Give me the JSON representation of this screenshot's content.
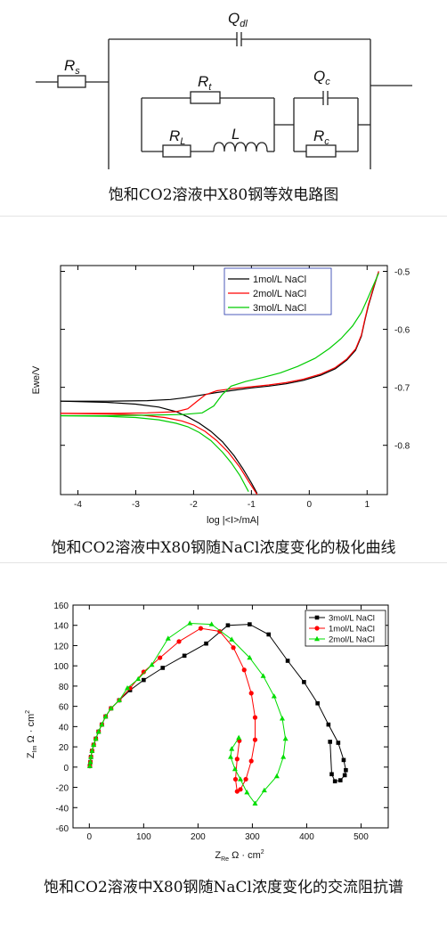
{
  "circuit": {
    "labels": {
      "Rs": {
        "main": "R",
        "sub": "s"
      },
      "Qdl": {
        "main": "Q",
        "sub": "dl"
      },
      "Rt": {
        "main": "R",
        "sub": "t"
      },
      "RL": {
        "main": "R",
        "sub": "L"
      },
      "L": {
        "main": "L",
        "sub": ""
      },
      "Qc": {
        "main": "Q",
        "sub": "c"
      },
      "Rc": {
        "main": "R",
        "sub": "c"
      }
    },
    "caption": "饱和CO2溶液中X80钢等效电路图"
  },
  "polarization": {
    "caption": "饱和CO2溶液中X80钢随NaCl浓度变化的极化曲线",
    "chart_data": {
      "type": "line",
      "xlabel": "log |<I>/mA|",
      "ylabel": "Ewe/V",
      "xlim": [
        -4.3,
        1.35
      ],
      "ylim": [
        -0.885,
        -0.49
      ],
      "xticks": [
        -4,
        -3,
        -2,
        -1,
        0,
        1
      ],
      "yticks": [
        -0.5,
        -0.6,
        -0.7,
        -0.8
      ],
      "xticklabels": [
        "-4",
        "-3",
        "-2",
        "-1",
        "0",
        "1"
      ],
      "yticklabels": [
        "-0.5",
        "-0.6",
        "-0.7",
        "-0.8"
      ],
      "legend_position": "top-right",
      "series": [
        {
          "name": "1mol/L NaCl",
          "color": "#000000",
          "x": [
            -4.3,
            -3.5,
            -2.8,
            -2.4,
            -2.15,
            -1.9,
            -1.6,
            -1.3,
            -1.0,
            -0.7,
            -0.4,
            -0.1,
            0.2,
            0.45,
            0.65,
            0.8,
            0.9,
            0.96,
            1.02,
            1.1,
            1.2
          ],
          "y": [
            -0.724,
            -0.724,
            -0.723,
            -0.721,
            -0.718,
            -0.714,
            -0.709,
            -0.705,
            -0.701,
            -0.698,
            -0.694,
            -0.688,
            -0.679,
            -0.668,
            -0.653,
            -0.636,
            -0.612,
            -0.585,
            -0.56,
            -0.533,
            -0.5
          ],
          "x2": [
            -4.3,
            -3.5,
            -3.0,
            -2.6,
            -2.3,
            -2.1,
            -1.9,
            -1.7,
            -1.5,
            -1.3,
            -1.15,
            -1.0,
            -0.9
          ],
          "y2": [
            -0.724,
            -0.726,
            -0.729,
            -0.734,
            -0.742,
            -0.751,
            -0.762,
            -0.776,
            -0.794,
            -0.818,
            -0.84,
            -0.865,
            -0.883
          ]
        },
        {
          "name": "2mol/L NaCl",
          "color": "#ff0000",
          "x": [
            -4.3,
            -3.5,
            -2.8,
            -2.3,
            -2.1,
            -1.95,
            -1.8,
            -1.6,
            -1.3,
            -1.0,
            -0.7,
            -0.4,
            -0.1,
            0.2,
            0.45,
            0.65,
            0.8,
            0.9,
            0.96,
            1.02,
            1.1,
            1.2
          ],
          "y": [
            -0.745,
            -0.745,
            -0.744,
            -0.742,
            -0.737,
            -0.725,
            -0.713,
            -0.706,
            -0.702,
            -0.699,
            -0.696,
            -0.692,
            -0.686,
            -0.677,
            -0.666,
            -0.651,
            -0.634,
            -0.61,
            -0.583,
            -0.558,
            -0.531,
            -0.5
          ],
          "x2": [
            -4.3,
            -3.4,
            -2.9,
            -2.5,
            -2.2,
            -2.0,
            -1.8,
            -1.6,
            -1.4,
            -1.2,
            -1.05,
            -0.9
          ],
          "y2": [
            -0.745,
            -0.746,
            -0.748,
            -0.752,
            -0.758,
            -0.765,
            -0.776,
            -0.792,
            -0.812,
            -0.838,
            -0.862,
            -0.885
          ]
        },
        {
          "name": "3mol/L NaCl",
          "color": "#00cc00",
          "x": [
            -4.3,
            -3.5,
            -2.8,
            -2.2,
            -1.85,
            -1.65,
            -1.5,
            -1.35,
            -1.1,
            -0.8,
            -0.5,
            -0.2,
            0.1,
            0.35,
            0.55,
            0.75,
            0.9,
            1.0,
            1.1,
            1.2
          ],
          "y": [
            -0.749,
            -0.749,
            -0.748,
            -0.747,
            -0.744,
            -0.732,
            -0.712,
            -0.698,
            -0.69,
            -0.683,
            -0.675,
            -0.664,
            -0.65,
            -0.633,
            -0.616,
            -0.594,
            -0.571,
            -0.549,
            -0.526,
            -0.503
          ],
          "x2": [
            -4.3,
            -3.5,
            -3.0,
            -2.6,
            -2.3,
            -2.1,
            -1.9,
            -1.7,
            -1.5,
            -1.35,
            -1.2,
            -1.05
          ],
          "y2": [
            -0.749,
            -0.75,
            -0.752,
            -0.756,
            -0.762,
            -0.768,
            -0.778,
            -0.792,
            -0.812,
            -0.83,
            -0.852,
            -0.88
          ]
        }
      ]
    }
  },
  "impedance": {
    "caption": "饱和CO2溶液中X80钢随NaCl浓度变化的交流阻抗谱",
    "chart_data": {
      "type": "scatter",
      "xlabel": {
        "main": "Z",
        "sub": "Re",
        "unit": "Ω · cm",
        "sup": "2"
      },
      "ylabel": {
        "main": "Z",
        "sub": "Im",
        "unit": "Ω · cm",
        "sup": "2"
      },
      "xlim": [
        -30,
        550
      ],
      "ylim": [
        -60,
        160
      ],
      "xticks": [
        0,
        100,
        200,
        300,
        400,
        500
      ],
      "yticks": [
        -60,
        -40,
        -20,
        0,
        20,
        40,
        60,
        80,
        100,
        120,
        140,
        160
      ],
      "xticklabels": [
        "0",
        "100",
        "200",
        "300",
        "400",
        "500"
      ],
      "yticklabels": [
        "-60",
        "-40",
        "-20",
        "0",
        "20",
        "40",
        "60",
        "80",
        "100",
        "120",
        "140",
        "160"
      ],
      "legend_position": "top-right",
      "series": [
        {
          "name": "3mol/L NaCl",
          "color": "#000000",
          "marker": "square",
          "x": [
            1,
            2,
            3,
            5,
            8,
            12,
            17,
            23,
            30,
            40,
            55,
            75,
            100,
            135,
            175,
            215,
            255,
            295,
            330,
            365,
            395,
            420,
            440,
            458,
            468,
            472,
            470,
            462,
            452,
            446,
            443
          ],
          "y": [
            1,
            5,
            10,
            16,
            22,
            28,
            35,
            42,
            50,
            58,
            66,
            76,
            86,
            98,
            110,
            122,
            140,
            141,
            131,
            105,
            84,
            63,
            42,
            24,
            7,
            -3,
            -8,
            -13,
            -14,
            -7,
            25
          ]
        },
        {
          "name": "1mol/L NaCl",
          "color": "#ff0000",
          "marker": "circle",
          "x": [
            1,
            2,
            3,
            5,
            8,
            12,
            17,
            23,
            30,
            40,
            55,
            75,
            100,
            130,
            165,
            205,
            240,
            265,
            285,
            298,
            305,
            305,
            298,
            288,
            278,
            272,
            269,
            272,
            276
          ],
          "y": [
            1,
            5,
            10,
            16,
            22,
            28,
            35,
            42,
            50,
            58,
            66,
            78,
            94,
            108,
            124,
            137,
            134,
            118,
            96,
            73,
            49,
            27,
            6,
            -12,
            -22,
            -24,
            -12,
            8,
            26
          ]
        },
        {
          "name": "2mol/L NaCl",
          "color": "#00dd00",
          "marker": "triangle",
          "x": [
            1,
            2,
            3,
            5,
            8,
            12,
            17,
            23,
            30,
            40,
            55,
            70,
            90,
            115,
            145,
            185,
            225,
            262,
            295,
            320,
            340,
            355,
            361,
            357,
            345,
            322,
            305,
            290,
            278,
            268,
            260,
            262,
            275
          ],
          "y": [
            1,
            5,
            10,
            16,
            22,
            28,
            35,
            42,
            50,
            58,
            66,
            78,
            87,
            101,
            127,
            142,
            141,
            126,
            108,
            90,
            70,
            48,
            28,
            10,
            -9,
            -23,
            -36,
            -25,
            -12,
            -2,
            10,
            18,
            29
          ]
        }
      ]
    }
  }
}
